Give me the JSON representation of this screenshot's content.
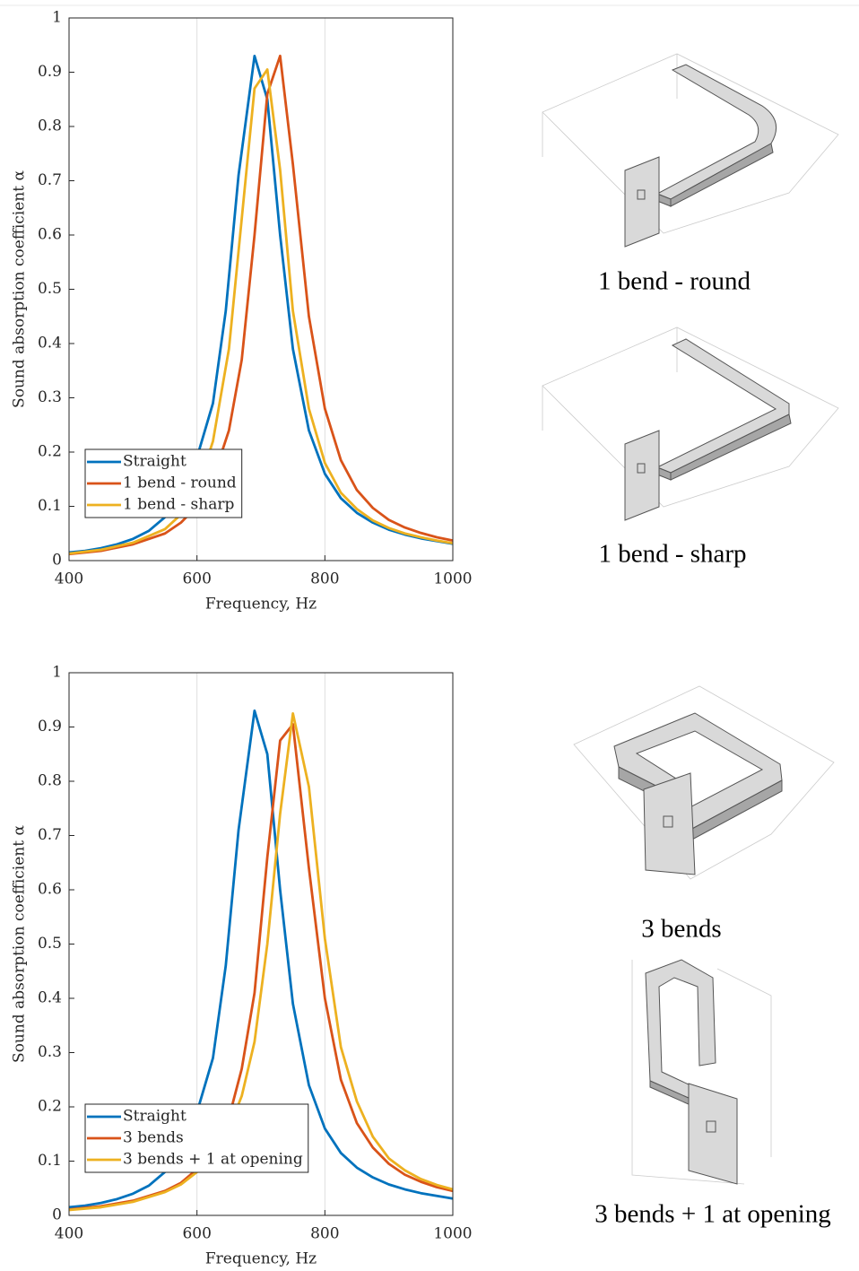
{
  "chart_data": [
    {
      "type": "line",
      "xlabel": "Frequency, Hz",
      "ylabel": "Sound absorption coefficient α",
      "xlim": [
        400,
        1000
      ],
      "xticks": [
        400,
        600,
        800,
        1000
      ],
      "ylim": [
        0,
        1
      ],
      "yticks": [
        0,
        0.1,
        0.2,
        0.3,
        0.4,
        0.5,
        0.6,
        0.7,
        0.8,
        0.9,
        1
      ],
      "grid": "x",
      "legend": "lower left",
      "series": [
        {
          "name": "Straight",
          "color": "#0072bd",
          "x": [
            400,
            425,
            450,
            475,
            500,
            525,
            550,
            575,
            600,
            625,
            645,
            665,
            690,
            710,
            730,
            750,
            775,
            800,
            825,
            850,
            875,
            900,
            925,
            950,
            975,
            1000
          ],
          "values": [
            0.015,
            0.018,
            0.023,
            0.03,
            0.04,
            0.055,
            0.08,
            0.12,
            0.19,
            0.29,
            0.46,
            0.71,
            0.93,
            0.85,
            0.6,
            0.39,
            0.24,
            0.16,
            0.115,
            0.088,
            0.07,
            0.057,
            0.048,
            0.041,
            0.036,
            0.031
          ]
        },
        {
          "name": "1 bend - round",
          "color": "#d95319",
          "x": [
            400,
            450,
            500,
            550,
            575,
            600,
            625,
            650,
            670,
            690,
            710,
            730,
            750,
            775,
            800,
            825,
            850,
            875,
            900,
            925,
            950,
            975,
            1000
          ],
          "values": [
            0.012,
            0.018,
            0.03,
            0.05,
            0.07,
            0.1,
            0.15,
            0.24,
            0.37,
            0.6,
            0.86,
            0.93,
            0.73,
            0.45,
            0.28,
            0.185,
            0.13,
            0.097,
            0.075,
            0.061,
            0.051,
            0.043,
            0.037
          ]
        },
        {
          "name": "1 bend - sharp",
          "color": "#edb120",
          "x": [
            400,
            450,
            500,
            550,
            575,
            600,
            625,
            650,
            670,
            690,
            710,
            730,
            750,
            775,
            800,
            825,
            850,
            875,
            900,
            925,
            950,
            975,
            1000
          ],
          "values": [
            0.013,
            0.02,
            0.033,
            0.058,
            0.085,
            0.13,
            0.22,
            0.39,
            0.63,
            0.87,
            0.905,
            0.72,
            0.46,
            0.28,
            0.18,
            0.125,
            0.095,
            0.074,
            0.06,
            0.05,
            0.043,
            0.037,
            0.032
          ]
        }
      ]
    },
    {
      "type": "line",
      "xlabel": "Frequency, Hz",
      "ylabel": "Sound absorption coefficient α",
      "xlim": [
        400,
        1000
      ],
      "xticks": [
        400,
        600,
        800,
        1000
      ],
      "ylim": [
        0,
        1
      ],
      "yticks": [
        0,
        0.1,
        0.2,
        0.3,
        0.4,
        0.5,
        0.6,
        0.7,
        0.8,
        0.9,
        1
      ],
      "grid": "x",
      "legend": "lower left",
      "series": [
        {
          "name": "Straight",
          "color": "#0072bd",
          "x": [
            400,
            425,
            450,
            475,
            500,
            525,
            550,
            575,
            600,
            625,
            645,
            665,
            690,
            710,
            730,
            750,
            775,
            800,
            825,
            850,
            875,
            900,
            925,
            950,
            975,
            1000
          ],
          "values": [
            0.015,
            0.018,
            0.023,
            0.03,
            0.04,
            0.055,
            0.08,
            0.12,
            0.19,
            0.29,
            0.46,
            0.71,
            0.93,
            0.85,
            0.6,
            0.39,
            0.24,
            0.16,
            0.115,
            0.088,
            0.07,
            0.057,
            0.048,
            0.041,
            0.036,
            0.031
          ]
        },
        {
          "name": "3 bends",
          "color": "#d95319",
          "x": [
            400,
            450,
            500,
            550,
            575,
            600,
            625,
            650,
            670,
            690,
            710,
            730,
            750,
            775,
            800,
            825,
            850,
            875,
            900,
            925,
            950,
            975,
            1000
          ],
          "values": [
            0.011,
            0.017,
            0.027,
            0.045,
            0.06,
            0.085,
            0.12,
            0.18,
            0.27,
            0.41,
            0.66,
            0.875,
            0.905,
            0.64,
            0.4,
            0.25,
            0.17,
            0.125,
            0.095,
            0.075,
            0.062,
            0.052,
            0.045
          ]
        },
        {
          "name": "3 bends + 1 at opening",
          "color": "#edb120",
          "x": [
            400,
            450,
            500,
            550,
            575,
            600,
            625,
            650,
            670,
            690,
            710,
            730,
            750,
            775,
            800,
            825,
            850,
            875,
            900,
            925,
            950,
            975,
            1000
          ],
          "values": [
            0.01,
            0.015,
            0.025,
            0.043,
            0.057,
            0.08,
            0.11,
            0.16,
            0.22,
            0.32,
            0.5,
            0.74,
            0.925,
            0.79,
            0.51,
            0.31,
            0.21,
            0.145,
            0.105,
            0.083,
            0.067,
            0.056,
            0.048
          ]
        }
      ]
    }
  ],
  "figures": [
    {
      "caption": "1 bend - round"
    },
    {
      "caption": "1 bend - sharp"
    },
    {
      "caption": "3 bends"
    },
    {
      "caption": "3 bends + 1 at opening"
    }
  ]
}
